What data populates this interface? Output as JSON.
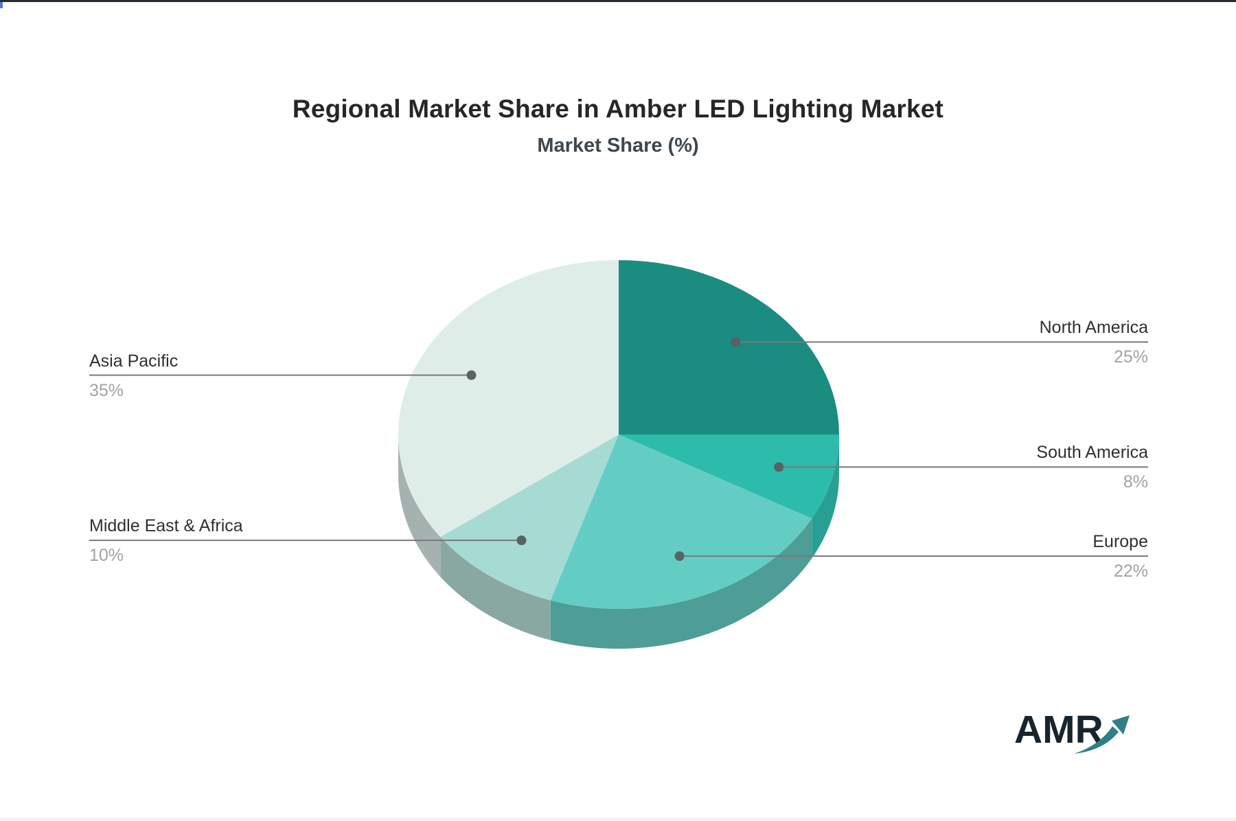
{
  "chart_data": {
    "type": "pie",
    "title": "Regional Market Share in Amber LED Lighting Market",
    "subtitle": "Market Share (%)",
    "unit": "%",
    "style": "3d",
    "start_angle_deg": 0,
    "direction": "clockwise",
    "legend_position": "none",
    "labels": "leader-lines",
    "slices": [
      {
        "label": "North America",
        "value": 25,
        "display": "25%",
        "color": "#1a8c80",
        "side_color": "#17786e"
      },
      {
        "label": "South America",
        "value": 8,
        "display": "8%",
        "color": "#2dbcab",
        "side_color": "#27a093"
      },
      {
        "label": "Europe",
        "value": 22,
        "display": "22%",
        "color": "#63cdc4",
        "side_color": "#4e9d96"
      },
      {
        "label": "Middle East & Africa",
        "value": 10,
        "display": "10%",
        "color": "#a5dbd2",
        "side_color": "#8aa8a2"
      },
      {
        "label": "Asia Pacific",
        "value": 35,
        "display": "35%",
        "color": "#dfede9",
        "side_color": "#a6b2af"
      }
    ],
    "leader_line_color": "#787878",
    "leader_dot_color": "#5a6262",
    "label_color": "#2f2f2f",
    "value_color": "#9fa3a3"
  },
  "logo": {
    "text": "AMR"
  }
}
